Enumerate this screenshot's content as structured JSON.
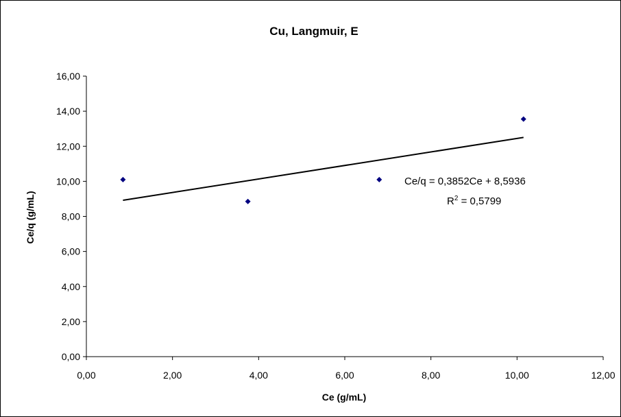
{
  "chart_data": {
    "type": "scatter",
    "title": "Cu, Langmuir, E",
    "xlabel": "Ce (g/mL)",
    "ylabel": "Ce/q (g/mL)",
    "xlim": [
      0,
      12
    ],
    "ylim": [
      0,
      16
    ],
    "x_ticks": [
      "0,00",
      "2,00",
      "4,00",
      "6,00",
      "8,00",
      "10,00",
      "12,00"
    ],
    "y_ticks": [
      "0,00",
      "2,00",
      "4,00",
      "6,00",
      "8,00",
      "10,00",
      "12,00",
      "14,00",
      "16,00"
    ],
    "series": [
      {
        "x": [
          0.85,
          3.75,
          6.8,
          10.15
        ],
        "y": [
          10.1,
          8.85,
          10.1,
          13.55
        ],
        "color": "#000080"
      }
    ],
    "trendline": {
      "slope": 0.3852,
      "intercept": 8.5936,
      "x_range": [
        0.85,
        10.15
      ],
      "color": "#000000"
    },
    "annotation": {
      "equation": "Ce/q = 0,3852Ce + 8,5936",
      "r2_prefix": "R",
      "r2_exponent": "2",
      "r2_value": " = 0,5799"
    }
  }
}
